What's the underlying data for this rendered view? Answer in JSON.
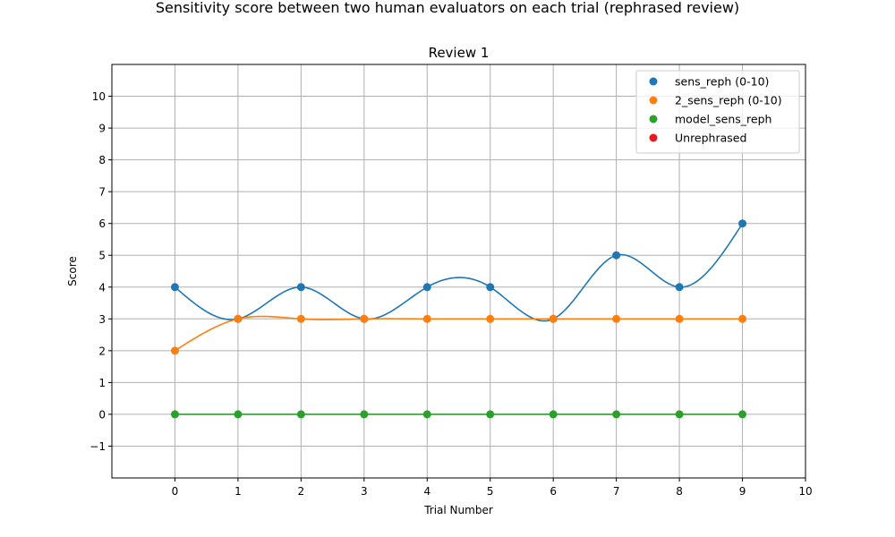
{
  "figure": {
    "suptitle": "Sensitivity score between two human evaluators on each trial (rephrased review)"
  },
  "chart_data": {
    "type": "scatter",
    "title": "Review 1",
    "xlabel": "Trial Number",
    "ylabel": "Score",
    "xlim": [
      -1,
      10
    ],
    "ylim": [
      -2,
      11
    ],
    "xticks": [
      0,
      1,
      2,
      3,
      4,
      5,
      6,
      7,
      8,
      9,
      10
    ],
    "yticks": [
      -1,
      0,
      1,
      2,
      3,
      4,
      5,
      6,
      7,
      8,
      9,
      10
    ],
    "grid": true,
    "legend_position": "top-right",
    "series": [
      {
        "name": "sens_reph (0-10)",
        "color": "#1f77b4",
        "x": [
          0,
          1,
          2,
          3,
          4,
          5,
          6,
          7,
          8,
          9
        ],
        "y": [
          4,
          3,
          4,
          3,
          4,
          4,
          3,
          5,
          4,
          6
        ],
        "smooth_line": true
      },
      {
        "name": "2_sens_reph (0-10)",
        "color": "#ff7f0e",
        "x": [
          0,
          1,
          2,
          3,
          4,
          5,
          6,
          7,
          8,
          9
        ],
        "y": [
          2,
          3,
          3,
          3,
          3,
          3,
          3,
          3,
          3,
          3
        ],
        "smooth_line": true
      },
      {
        "name": "model_sens_reph",
        "color": "#2ca02c",
        "x": [
          0,
          1,
          2,
          3,
          4,
          5,
          6,
          7,
          8,
          9
        ],
        "y": [
          0,
          0,
          0,
          0,
          0,
          0,
          0,
          0,
          0,
          0
        ],
        "smooth_line": true
      },
      {
        "name": "Unrephrased",
        "color": "#e41a1c",
        "x": [],
        "y": [],
        "smooth_line": false
      }
    ]
  }
}
